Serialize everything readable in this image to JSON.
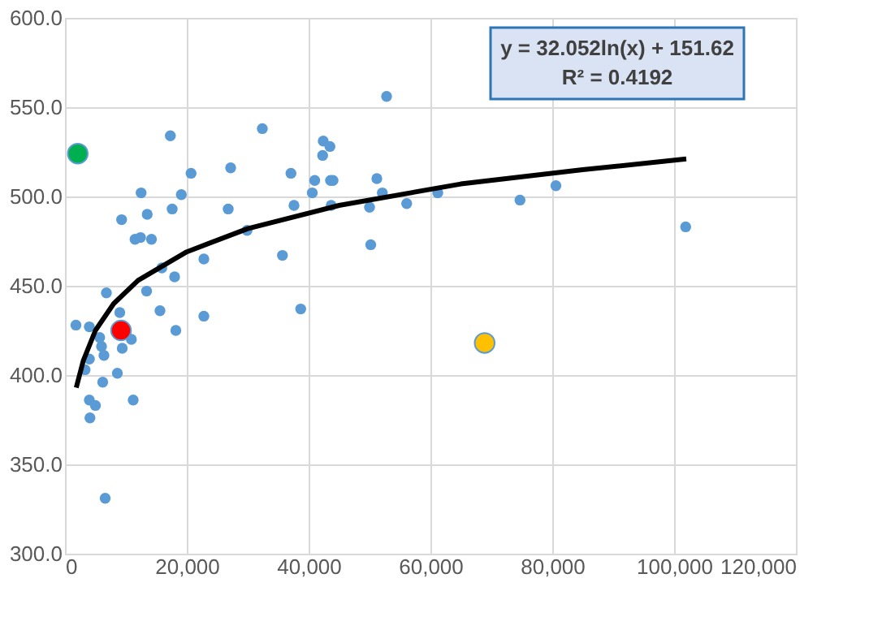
{
  "chart_data": {
    "type": "scatter",
    "xlim": [
      0,
      120000
    ],
    "xticks": [
      {
        "value": 0,
        "label": "0"
      },
      {
        "value": 20000,
        "label": "20,000"
      },
      {
        "value": 40000,
        "label": "40,000"
      },
      {
        "value": 60000,
        "label": "60,000"
      },
      {
        "value": 80000,
        "label": "80,000"
      },
      {
        "value": 100000,
        "label": "100,000"
      },
      {
        "value": 120000,
        "label": "120,000"
      }
    ],
    "ylim": [
      300,
      600
    ],
    "yticks": [
      {
        "value": 300,
        "label": "300.0"
      },
      {
        "value": 350,
        "label": "350.0"
      },
      {
        "value": 400,
        "label": "400.0"
      },
      {
        "value": 450,
        "label": "450.0"
      },
      {
        "value": 500,
        "label": "500.0"
      },
      {
        "value": 550,
        "label": "550.0"
      },
      {
        "value": 600,
        "label": "600.0"
      }
    ],
    "grid": true,
    "marker": "circle",
    "annotations": [
      "y = 32.052ln(x) + 151.62",
      "R² = 0.4192"
    ],
    "series": [
      {
        "color": "#5b9bd5",
        "x": [
          52800,
          32400,
          17300,
          42400,
          43500,
          42300,
          20700,
          27200,
          37100,
          41000,
          43600,
          44000,
          51200,
          52100,
          40600,
          12500,
          19100,
          80600,
          61200,
          74700,
          56100,
          37600,
          43700,
          50000,
          26800,
          17600,
          13500,
          9300,
          101900,
          29900,
          11500,
          12400,
          14200,
          50200,
          35700,
          22800,
          15900,
          18000,
          13400,
          6800,
          38700,
          15600,
          9000,
          22800,
          1800,
          4000,
          18200,
          5700,
          10900,
          6000,
          9400,
          6400,
          4000,
          3300,
          8600,
          6200,
          4000,
          11200,
          5000,
          4100,
          6600
        ],
        "values": [
          556,
          538,
          534,
          531,
          528,
          523,
          513,
          516,
          513,
          509,
          509,
          509,
          510,
          502,
          502,
          502,
          501,
          506,
          502,
          498,
          496,
          495,
          495,
          494,
          493,
          493,
          490,
          487,
          483,
          481,
          476,
          477,
          476,
          473,
          467,
          465,
          460,
          455,
          447,
          446,
          437,
          436,
          435,
          433,
          428,
          427,
          425,
          421,
          420,
          416,
          415,
          411,
          409,
          403,
          401,
          396,
          386,
          386,
          383,
          376,
          331
        ]
      },
      {
        "type": "line",
        "marker": "none",
        "color": "#000000",
        "x": [
          1850,
          3000,
          5000,
          8000,
          12000,
          20000,
          30000,
          45000,
          65000,
          85000,
          102000
        ],
        "values": [
          393,
          408,
          425,
          440,
          453,
          469,
          482,
          495,
          507,
          515,
          521
        ]
      },
      {
        "color": "#00b050",
        "x": [
          2100
        ],
        "values": [
          524
        ]
      },
      {
        "color": "#ff0000",
        "x": [
          9200
        ],
        "values": [
          425
        ]
      },
      {
        "color": "#ffc000",
        "x": [
          68900
        ],
        "values": [
          418
        ]
      }
    ]
  }
}
